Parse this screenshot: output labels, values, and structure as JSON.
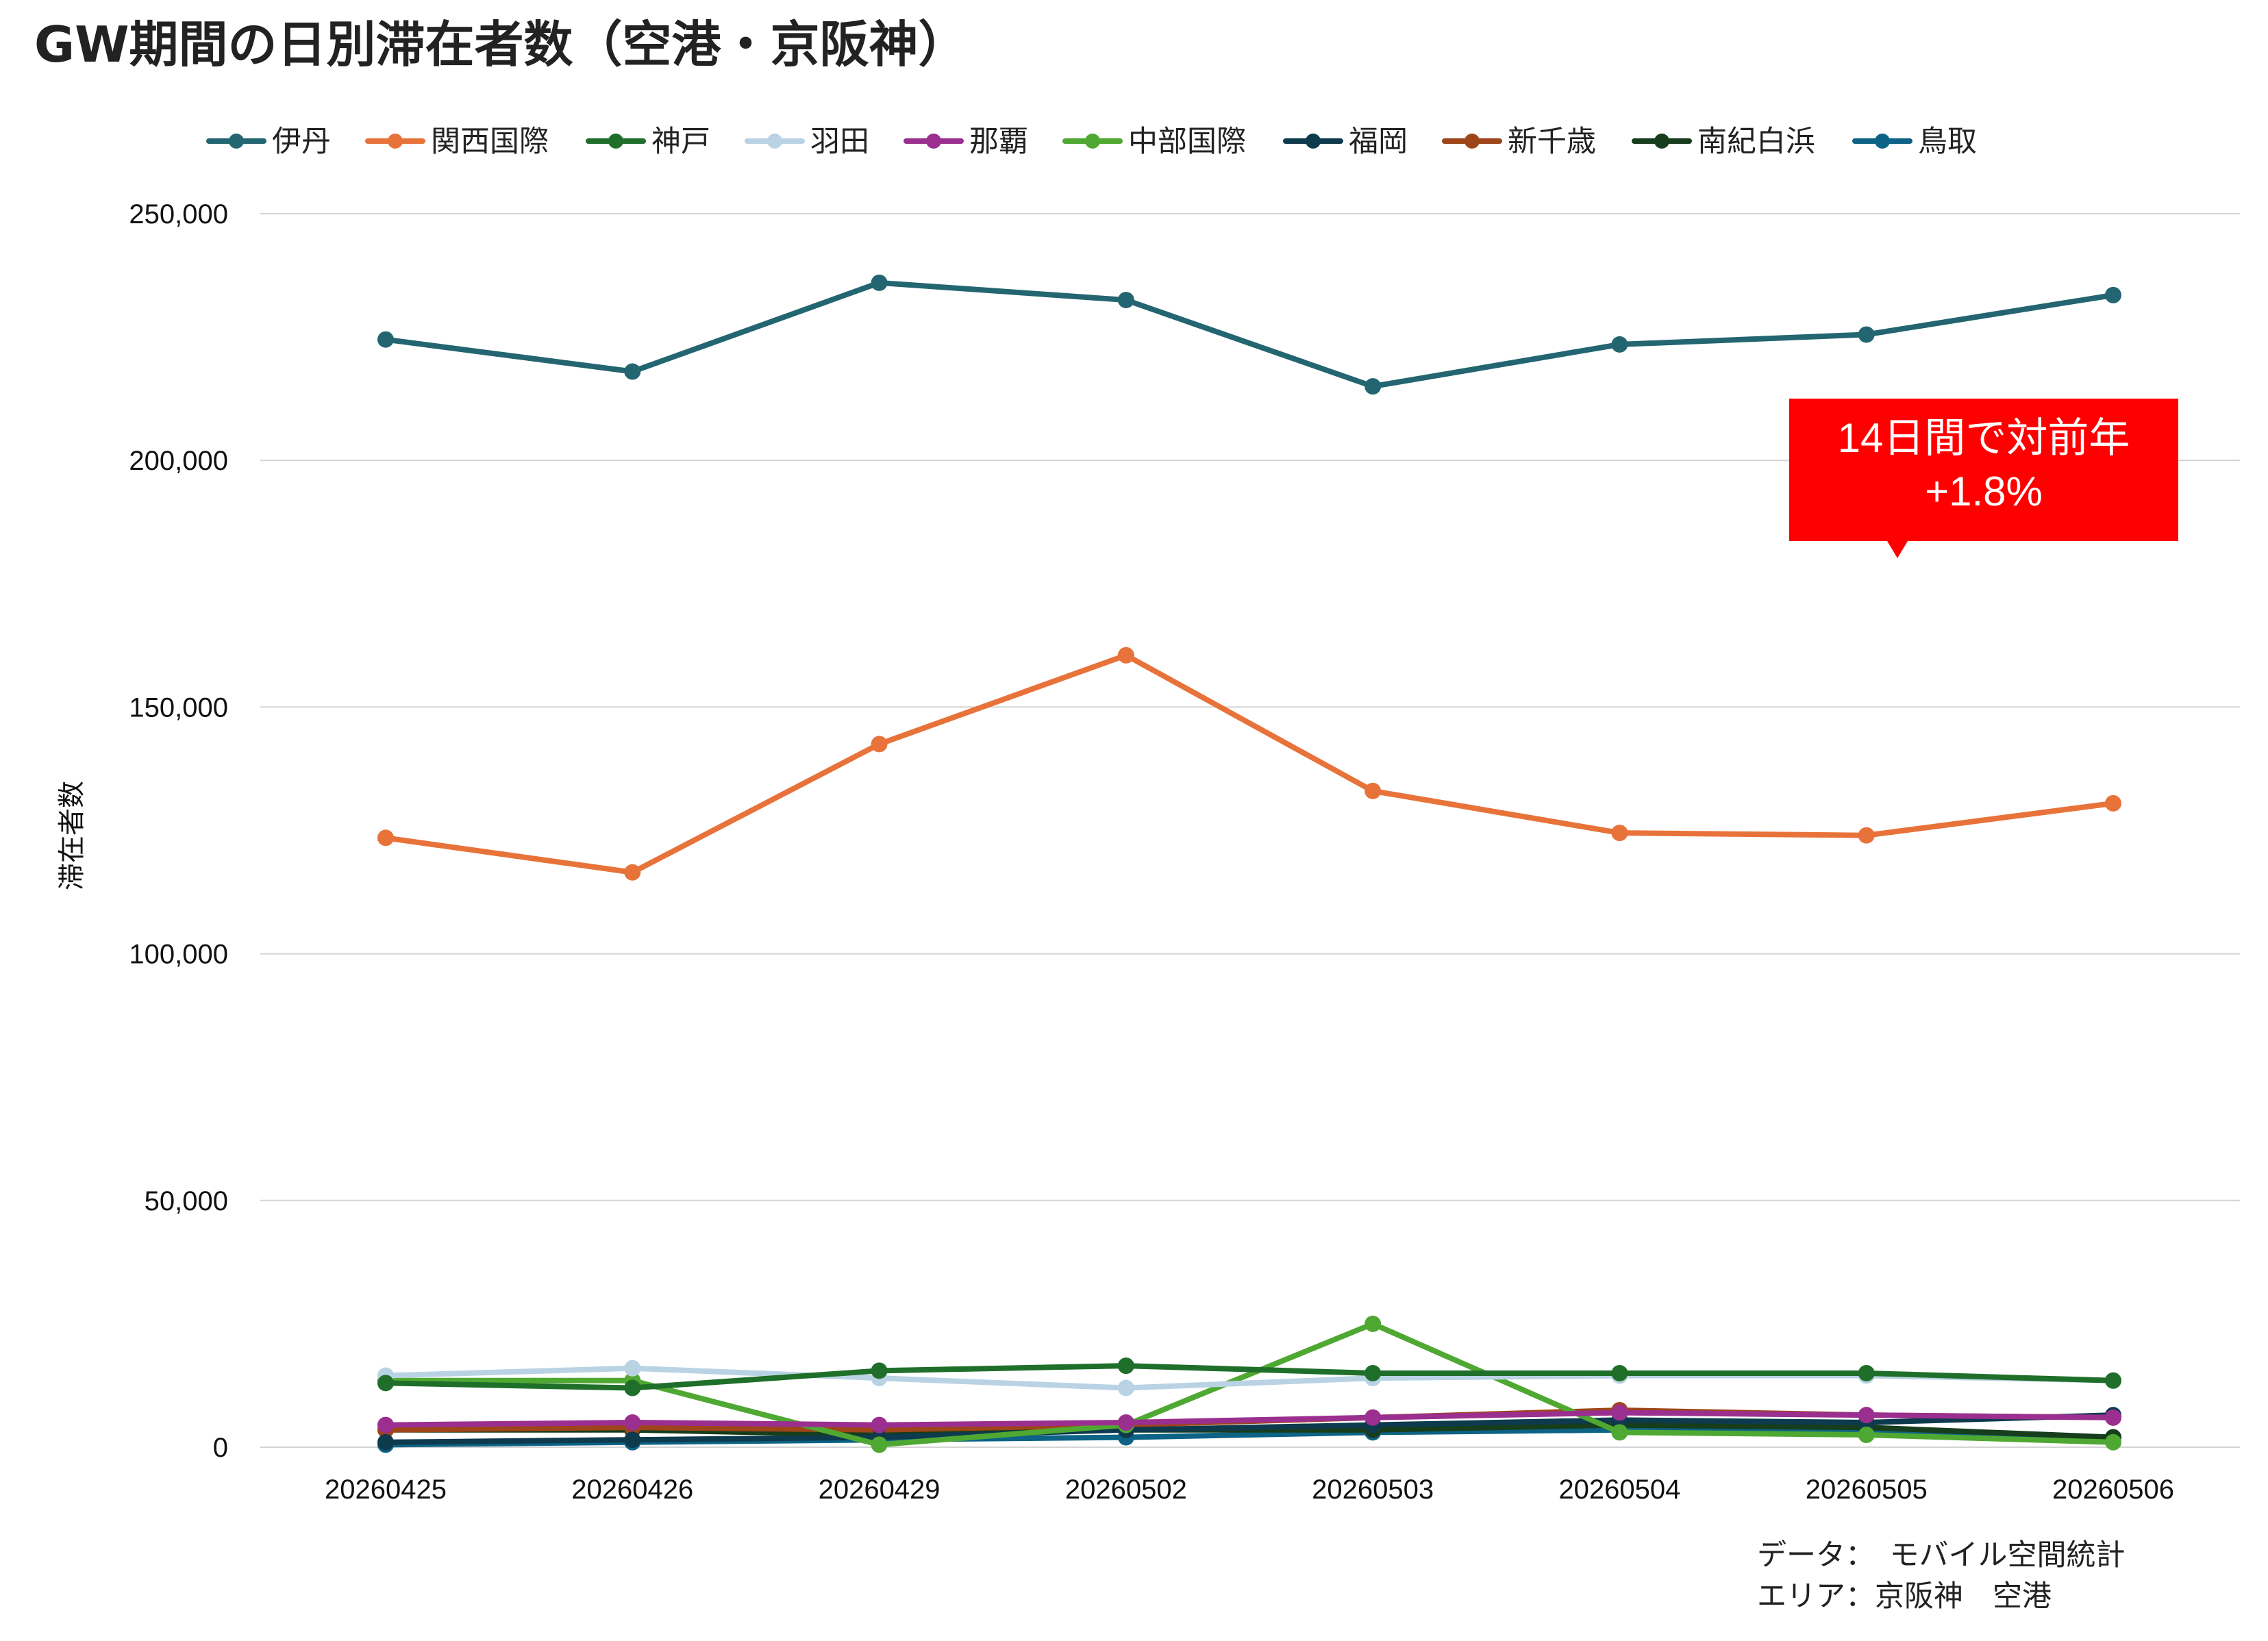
{
  "chart_data": {
    "type": "line",
    "title": "GW期間の日別滞在者数（空港・京阪神）",
    "ylabel": "滞在者数",
    "xlabel": "",
    "ylim": [
      0,
      250000
    ],
    "y_ticks": [
      0,
      50000,
      100000,
      150000,
      200000,
      250000
    ],
    "y_tick_labels": [
      "0",
      "50,000",
      "100,000",
      "150,000",
      "200,000",
      "250,000"
    ],
    "grid": true,
    "legend_position": "top",
    "categories": [
      "20260425",
      "20260426",
      "20260429",
      "20260502",
      "20260503",
      "20260504",
      "20260505",
      "20260506"
    ],
    "series": [
      {
        "name": "伊丹",
        "color": "#236571",
        "values": [
          224500,
          218000,
          236000,
          232500,
          215000,
          223500,
          225500,
          233500
        ]
      },
      {
        "name": "関西国際",
        "color": "#E8733A",
        "values": [
          123500,
          116500,
          142500,
          160500,
          133000,
          124500,
          124000,
          130500
        ]
      },
      {
        "name": "神戸",
        "color": "#1F6F2A",
        "values": [
          13000,
          12000,
          15500,
          16500,
          15000,
          15000,
          15000,
          13500
        ]
      },
      {
        "name": "羽田",
        "color": "#B9D3E4",
        "values": [
          14500,
          16000,
          14000,
          12000,
          14000,
          14500,
          14500,
          13500
        ]
      },
      {
        "name": "那覇",
        "color": "#9B2F8F",
        "values": [
          4500,
          5000,
          4500,
          5000,
          6000,
          7000,
          6500,
          6000
        ]
      },
      {
        "name": "中部国際",
        "color": "#4FA832",
        "values": [
          13500,
          13500,
          500,
          4500,
          25000,
          3000,
          2500,
          1000
        ]
      },
      {
        "name": "福岡",
        "color": "#0E3A4E",
        "values": [
          1000,
          1500,
          2000,
          3500,
          4500,
          5500,
          5000,
          6500
        ]
      },
      {
        "name": "新千歳",
        "color": "#9E4519",
        "values": [
          3500,
          4000,
          3500,
          4500,
          6000,
          7500,
          6500,
          6000
        ]
      },
      {
        "name": "南紀白浜",
        "color": "#163D1C",
        "values": [
          3500,
          3500,
          2500,
          3500,
          3500,
          4500,
          4000,
          2000
        ]
      },
      {
        "name": "鳥取",
        "color": "#0D6385",
        "values": [
          500,
          1000,
          1500,
          2000,
          3000,
          3500,
          3500,
          2000
        ]
      }
    ],
    "annotation": {
      "line1": "14日間で対前年",
      "line2": "+1.8%",
      "color": "#FF0000"
    },
    "notes": {
      "line1": "データ：　モバイル空間統計",
      "line2": "エリア：京阪神　空港"
    }
  }
}
